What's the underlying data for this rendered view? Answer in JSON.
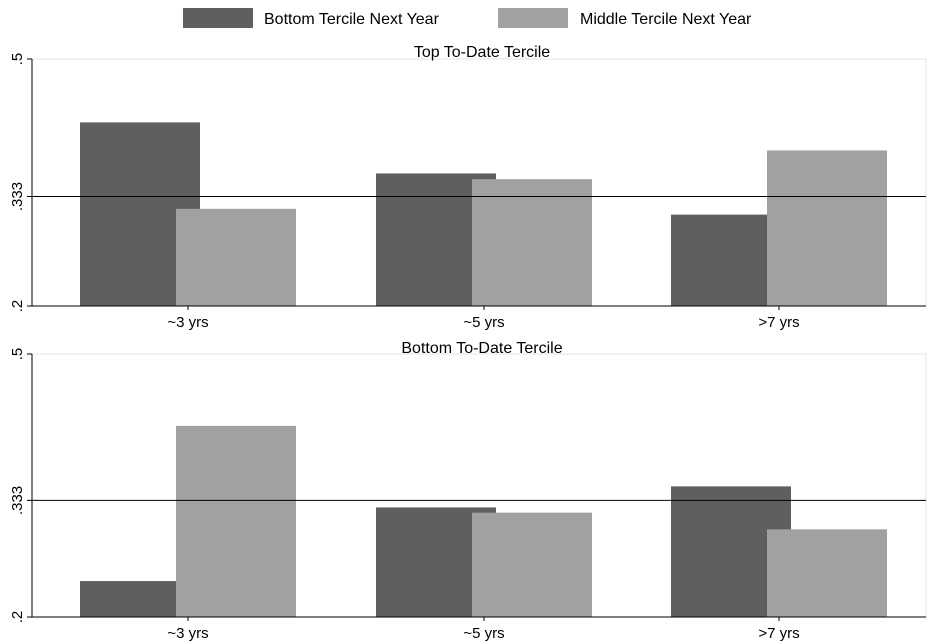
{
  "chart_data": {
    "type": "bar",
    "legend": {
      "position": "top",
      "items": [
        {
          "label": "Bottom Tercile Next Year",
          "color": "#5f5f5f"
        },
        {
          "label": "Middle Tercile Next Year",
          "color": "#a1a1a1"
        }
      ]
    },
    "ylim": [
      0.2,
      0.5
    ],
    "y_ticks": [
      {
        "value": 0.5,
        "label": ".5"
      },
      {
        "value": 0.333,
        "label": ".333"
      },
      {
        "value": 0.2,
        "label": ".2"
      }
    ],
    "reference_line": 0.333,
    "categories": [
      "~3 yrs",
      "~5 yrs",
      ">7 yrs"
    ],
    "panels": [
      {
        "title": "Top To-Date Tercile",
        "series": [
          {
            "name": "Bottom Tercile Next Year",
            "values": [
              0.423,
              0.361,
              0.311
            ]
          },
          {
            "name": "Middle Tercile Next Year",
            "values": [
              0.318,
              0.354,
              0.389
            ]
          }
        ]
      },
      {
        "title": "Bottom To-Date Tercile",
        "series": [
          {
            "name": "Bottom Tercile Next Year",
            "values": [
              0.241,
              0.325,
              0.349
            ]
          },
          {
            "name": "Middle Tercile Next Year",
            "values": [
              0.418,
              0.319,
              0.3
            ]
          }
        ]
      }
    ]
  }
}
